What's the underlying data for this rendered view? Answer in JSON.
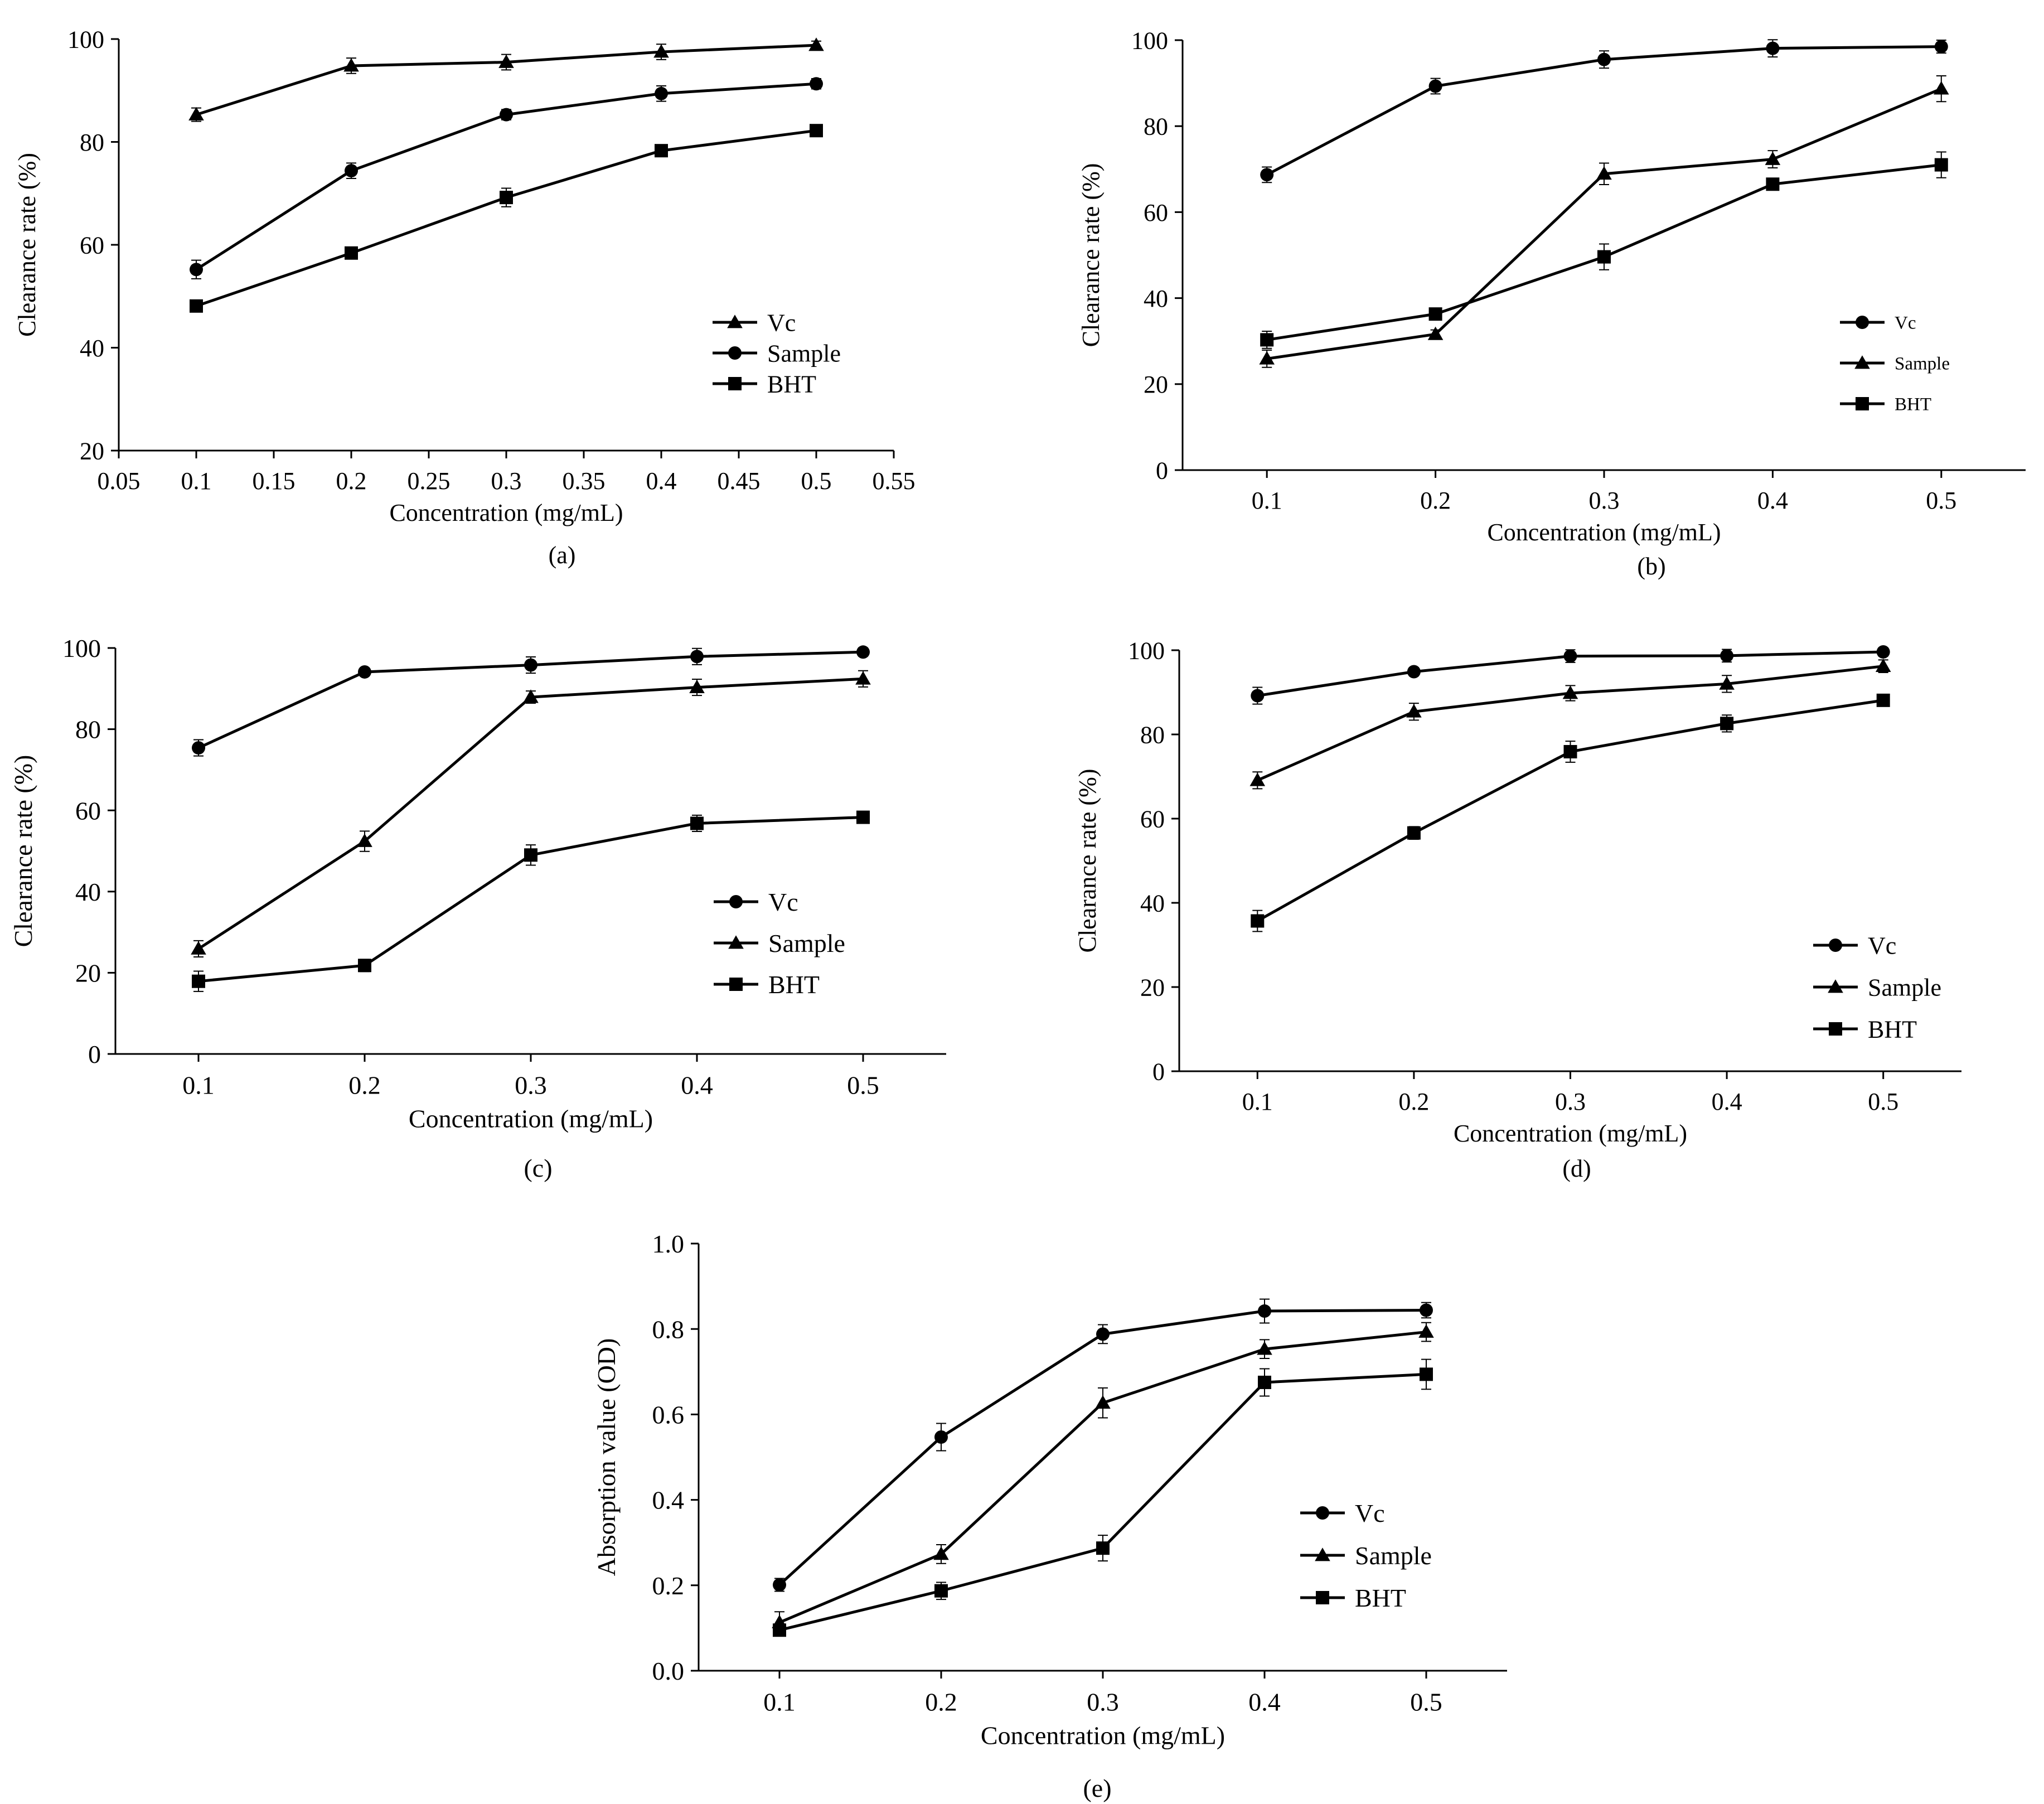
{
  "figure": {
    "line_color": "#000000",
    "background": "#ffffff"
  },
  "chart_data": [
    {
      "id": "a",
      "type": "line",
      "caption": "(a)",
      "xlabel": "Concentration (mg/mL)",
      "ylabel": "Clearance rate (%)",
      "xlim": [
        0.05,
        0.55
      ],
      "ylim": [
        20,
        100
      ],
      "xticks": [
        "0.05",
        "0.1",
        "0.15",
        "0.2",
        "0.25",
        "0.3",
        "0.35",
        "0.4",
        "0.45",
        "0.5",
        "0.55"
      ],
      "xtick_values": [
        0.05,
        0.1,
        0.15,
        0.2,
        0.25,
        0.3,
        0.35,
        0.4,
        0.45,
        0.5,
        0.55
      ],
      "yticks": [
        "20",
        "40",
        "60",
        "80",
        "100"
      ],
      "ytick_values": [
        20,
        40,
        60,
        80,
        100
      ],
      "legend_position": "right-middle",
      "series": [
        {
          "name": "Vc",
          "marker": "triangle",
          "x": [
            0.1,
            0.2,
            0.3,
            0.4,
            0.5
          ],
          "y": [
            85.3,
            94.8,
            95.5,
            97.5,
            98.8
          ],
          "err": [
            1.3,
            1.5,
            1.5,
            1.5,
            0.8
          ]
        },
        {
          "name": "Sample",
          "marker": "circle",
          "x": [
            0.1,
            0.2,
            0.3,
            0.4,
            0.5
          ],
          "y": [
            55.2,
            74.4,
            85.3,
            89.4,
            91.3
          ],
          "err": [
            1.8,
            1.5,
            1.0,
            1.5,
            1.0
          ]
        },
        {
          "name": "BHT",
          "marker": "square",
          "x": [
            0.1,
            0.2,
            0.3,
            0.4,
            0.5
          ],
          "y": [
            48.1,
            58.4,
            69.2,
            78.3,
            82.2
          ],
          "err": [
            0.8,
            1.0,
            1.8,
            1.0,
            0.8
          ]
        }
      ]
    },
    {
      "id": "b",
      "type": "line",
      "caption": "(b)",
      "xlabel": "Concentration (mg/mL)",
      "ylabel": "Clearance rate (%)",
      "xlim": [
        0.05,
        0.55
      ],
      "ylim": [
        0,
        100
      ],
      "xticks": [
        "0.1",
        "0.2",
        "0.3",
        "0.4",
        "0.5"
      ],
      "xtick_values": [
        0.1,
        0.2,
        0.3,
        0.4,
        0.5
      ],
      "yticks": [
        "0",
        "20",
        "40",
        "60",
        "80",
        "100"
      ],
      "ytick_values": [
        0,
        20,
        40,
        60,
        80,
        100
      ],
      "legend_position": "right-middle",
      "series": [
        {
          "name": "Vc",
          "marker": "circle",
          "x": [
            0.1,
            0.2,
            0.3,
            0.4,
            0.5
          ],
          "y": [
            68.7,
            89.3,
            95.5,
            98.1,
            98.5
          ],
          "err": [
            1.8,
            1.8,
            2.0,
            2.0,
            1.5
          ]
        },
        {
          "name": "Sample",
          "marker": "triangle",
          "x": [
            0.1,
            0.2,
            0.3,
            0.4,
            0.5
          ],
          "y": [
            25.9,
            31.6,
            68.9,
            72.3,
            88.7
          ],
          "err": [
            2.0,
            1.0,
            2.5,
            2.0,
            3.0
          ]
        },
        {
          "name": "BHT",
          "marker": "square",
          "x": [
            0.1,
            0.2,
            0.3,
            0.4,
            0.5
          ],
          "y": [
            30.3,
            36.3,
            49.6,
            66.5,
            71.0
          ],
          "err": [
            2.0,
            1.0,
            3.0,
            1.0,
            3.0
          ]
        }
      ]
    },
    {
      "id": "c",
      "type": "line",
      "caption": "(c)",
      "xlabel": "Concentration (mg/mL)",
      "ylabel": "Clearance rate (%)",
      "xlim": [
        0.05,
        0.55
      ],
      "ylim": [
        0,
        100
      ],
      "xticks": [
        "0.1",
        "0.2",
        "0.3",
        "0.4",
        "0.5"
      ],
      "xtick_values": [
        0.1,
        0.2,
        0.3,
        0.4,
        0.5
      ],
      "yticks": [
        "0",
        "20",
        "40",
        "60",
        "80",
        "100"
      ],
      "ytick_values": [
        0,
        20,
        40,
        60,
        80,
        100
      ],
      "legend_position": "right-bottom",
      "series": [
        {
          "name": "Vc",
          "marker": "circle",
          "x": [
            0.1,
            0.2,
            0.3,
            0.4,
            0.5
          ],
          "y": [
            75.4,
            94.1,
            95.8,
            97.9,
            99.0
          ],
          "err": [
            2.0,
            1.0,
            2.0,
            2.0,
            1.0
          ]
        },
        {
          "name": "Sample",
          "marker": "triangle",
          "x": [
            0.1,
            0.2,
            0.3,
            0.4,
            0.5
          ],
          "y": [
            25.9,
            52.4,
            87.9,
            90.3,
            92.4
          ],
          "err": [
            2.0,
            2.5,
            1.5,
            2.0,
            2.0
          ]
        },
        {
          "name": "BHT",
          "marker": "square",
          "x": [
            0.1,
            0.2,
            0.3,
            0.4,
            0.5
          ],
          "y": [
            17.9,
            21.8,
            49.0,
            56.8,
            58.3
          ],
          "err": [
            2.5,
            1.5,
            2.5,
            2.0,
            1.0
          ]
        }
      ]
    },
    {
      "id": "d",
      "type": "line",
      "caption": "(d)",
      "xlabel": "Concentration (mg/mL)",
      "ylabel": "Clearance rate (%)",
      "xlim": [
        0.05,
        0.55
      ],
      "ylim": [
        0,
        100
      ],
      "xticks": [
        "0.1",
        "0.2",
        "0.3",
        "0.4",
        "0.5"
      ],
      "xtick_values": [
        0.1,
        0.2,
        0.3,
        0.4,
        0.5
      ],
      "yticks": [
        "0",
        "20",
        "40",
        "60",
        "80",
        "100"
      ],
      "ytick_values": [
        0,
        20,
        40,
        60,
        80,
        100
      ],
      "legend_position": "right-bottom",
      "series": [
        {
          "name": "Vc",
          "marker": "circle",
          "x": [
            0.1,
            0.2,
            0.3,
            0.4,
            0.5
          ],
          "y": [
            89.2,
            94.9,
            98.6,
            98.7,
            99.6
          ],
          "err": [
            2.0,
            1.0,
            1.5,
            1.5,
            1.0
          ]
        },
        {
          "name": "Sample",
          "marker": "triangle",
          "x": [
            0.1,
            0.2,
            0.3,
            0.4,
            0.5
          ],
          "y": [
            69.1,
            85.4,
            89.8,
            92.0,
            96.2
          ],
          "err": [
            2.0,
            2.0,
            1.8,
            2.0,
            1.5
          ]
        },
        {
          "name": "BHT",
          "marker": "square",
          "x": [
            0.1,
            0.2,
            0.3,
            0.4,
            0.5
          ],
          "y": [
            35.7,
            56.6,
            75.9,
            82.6,
            88.1
          ],
          "err": [
            2.5,
            1.5,
            2.5,
            2.0,
            1.0
          ]
        }
      ]
    },
    {
      "id": "e",
      "type": "line",
      "caption": "(e)",
      "xlabel": "Concentration (mg/mL)",
      "ylabel": "Absorption value (OD)",
      "xlim": [
        0.05,
        0.55
      ],
      "ylim": [
        0,
        1.0
      ],
      "xticks": [
        "0.1",
        "0.2",
        "0.3",
        "0.4",
        "0.5"
      ],
      "xtick_values": [
        0.1,
        0.2,
        0.3,
        0.4,
        0.5
      ],
      "yticks": [
        "0.0",
        "0.2",
        "0.4",
        "0.6",
        "0.8",
        "1.0"
      ],
      "ytick_values": [
        0,
        0.2,
        0.4,
        0.6,
        0.8,
        1.0
      ],
      "legend_position": "right-bottom",
      "series": [
        {
          "name": "Vc",
          "marker": "circle",
          "x": [
            0.1,
            0.2,
            0.3,
            0.4,
            0.5
          ],
          "y": [
            0.201,
            0.547,
            0.788,
            0.842,
            0.844
          ],
          "err": [
            0.015,
            0.032,
            0.022,
            0.028,
            0.018
          ]
        },
        {
          "name": "Sample",
          "marker": "triangle",
          "x": [
            0.1,
            0.2,
            0.3,
            0.4,
            0.5
          ],
          "y": [
            0.113,
            0.273,
            0.627,
            0.753,
            0.793
          ],
          "err": [
            0.025,
            0.022,
            0.035,
            0.022,
            0.022
          ]
        },
        {
          "name": "BHT",
          "marker": "square",
          "x": [
            0.1,
            0.2,
            0.3,
            0.4,
            0.5
          ],
          "y": [
            0.095,
            0.187,
            0.287,
            0.675,
            0.694
          ],
          "err": [
            0.012,
            0.02,
            0.03,
            0.032,
            0.035
          ]
        }
      ]
    }
  ]
}
